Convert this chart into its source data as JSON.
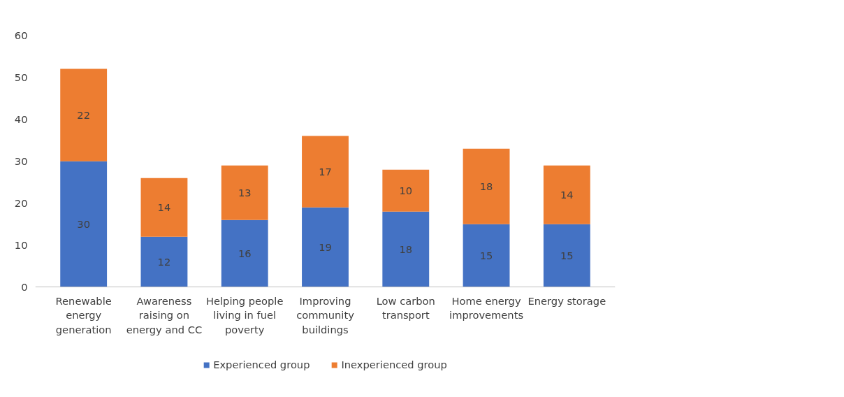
{
  "chart_data": {
    "type": "bar",
    "stacked": true,
    "categories": [
      "Renewable energy generation",
      "Awareness raising on energy and CC",
      "Helping people living in fuel poverty",
      "Improving community buildings",
      "Low carbon transport",
      "Home energy improvements",
      "Energy storage"
    ],
    "series": [
      {
        "name": "Experienced group",
        "color": "#4472c4",
        "values": [
          30,
          12,
          16,
          19,
          18,
          15,
          15
        ]
      },
      {
        "name": "Inexperienced group",
        "color": "#ed7d31",
        "values": [
          22,
          14,
          13,
          17,
          10,
          18,
          14
        ]
      }
    ],
    "ylim": [
      0,
      60
    ],
    "yticks": [
      0,
      10,
      20,
      30,
      40,
      50,
      60
    ],
    "data_labels": true,
    "grid": false,
    "legend": "bottom"
  }
}
